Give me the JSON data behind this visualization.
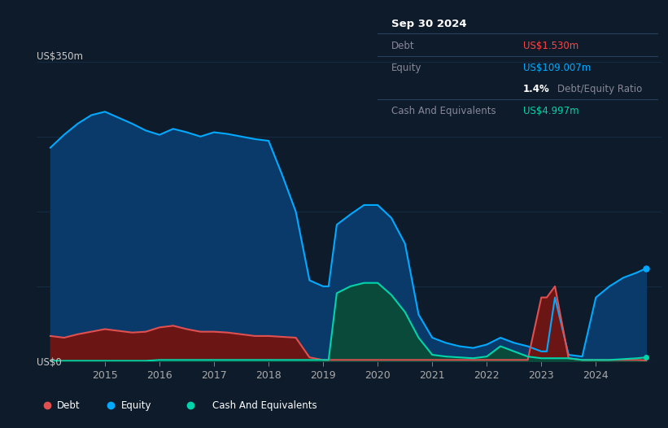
{
  "bg_color": "#0d1b2a",
  "plot_bg_color": "#0d1b2a",
  "grid_color": "#1e3a5f",
  "ylabel": "US$350m",
  "y0label": "US$0",
  "ylim": [
    0,
    350
  ],
  "debt_color": "#e05050",
  "equity_color": "#00aaff",
  "cash_color": "#00d4aa",
  "equity_fill": "#0a3a6a",
  "debt_fill": "#6b1515",
  "cash_fill": "#0a4a3a",
  "info_box": {
    "date": "Sep 30 2024",
    "debt_label": "Debt",
    "debt_value": "US$1.530m",
    "equity_label": "Equity",
    "equity_value": "US$109.007m",
    "ratio_value": "1.4%",
    "ratio_label": "Debt/Equity Ratio",
    "cash_label": "Cash And Equivalents",
    "cash_value": "US$4.997m",
    "debt_color": "#ff4444",
    "equity_color": "#00aaff",
    "cash_color": "#00d4aa"
  },
  "legend": [
    {
      "label": "Debt",
      "color": "#e05050"
    },
    {
      "label": "Equity",
      "color": "#00aaff"
    },
    {
      "label": "Cash And Equivalents",
      "color": "#00d4aa"
    }
  ],
  "x_years": [
    2014.0,
    2014.25,
    2014.5,
    2014.75,
    2015.0,
    2015.25,
    2015.5,
    2015.75,
    2016.0,
    2016.25,
    2016.5,
    2016.75,
    2017.0,
    2017.25,
    2017.5,
    2017.75,
    2018.0,
    2018.25,
    2018.5,
    2018.75,
    2019.0,
    2019.1,
    2019.25,
    2019.5,
    2019.75,
    2020.0,
    2020.25,
    2020.5,
    2020.75,
    2021.0,
    2021.25,
    2021.5,
    2021.75,
    2022.0,
    2022.25,
    2022.5,
    2022.75,
    2023.0,
    2023.1,
    2023.25,
    2023.5,
    2023.75,
    2024.0,
    2024.25,
    2024.5,
    2024.75,
    2024.92
  ],
  "equity": [
    250,
    265,
    278,
    288,
    292,
    285,
    278,
    270,
    265,
    272,
    268,
    263,
    268,
    266,
    263,
    260,
    258,
    218,
    175,
    95,
    88,
    88,
    160,
    172,
    183,
    183,
    168,
    138,
    55,
    28,
    22,
    18,
    16,
    20,
    28,
    22,
    18,
    12,
    12,
    75,
    8,
    6,
    75,
    88,
    98,
    104,
    109
  ],
  "debt": [
    30,
    28,
    32,
    35,
    38,
    36,
    34,
    35,
    40,
    42,
    38,
    35,
    35,
    34,
    32,
    30,
    30,
    29,
    28,
    5,
    2,
    2,
    2,
    2,
    2,
    2,
    2,
    2,
    2,
    2,
    2,
    2,
    2,
    2,
    2,
    2,
    2,
    75,
    75,
    88,
    4,
    2,
    2,
    2,
    2,
    2,
    1.5
  ],
  "cash": [
    1,
    1,
    1,
    1,
    1,
    1,
    1,
    1,
    2,
    2,
    2,
    2,
    2,
    2,
    2,
    2,
    2,
    2,
    2,
    2,
    2,
    2,
    80,
    88,
    92,
    92,
    78,
    58,
    28,
    8,
    6,
    5,
    4,
    6,
    18,
    12,
    6,
    4,
    4,
    4,
    4,
    2,
    2,
    2,
    3,
    4,
    5
  ]
}
